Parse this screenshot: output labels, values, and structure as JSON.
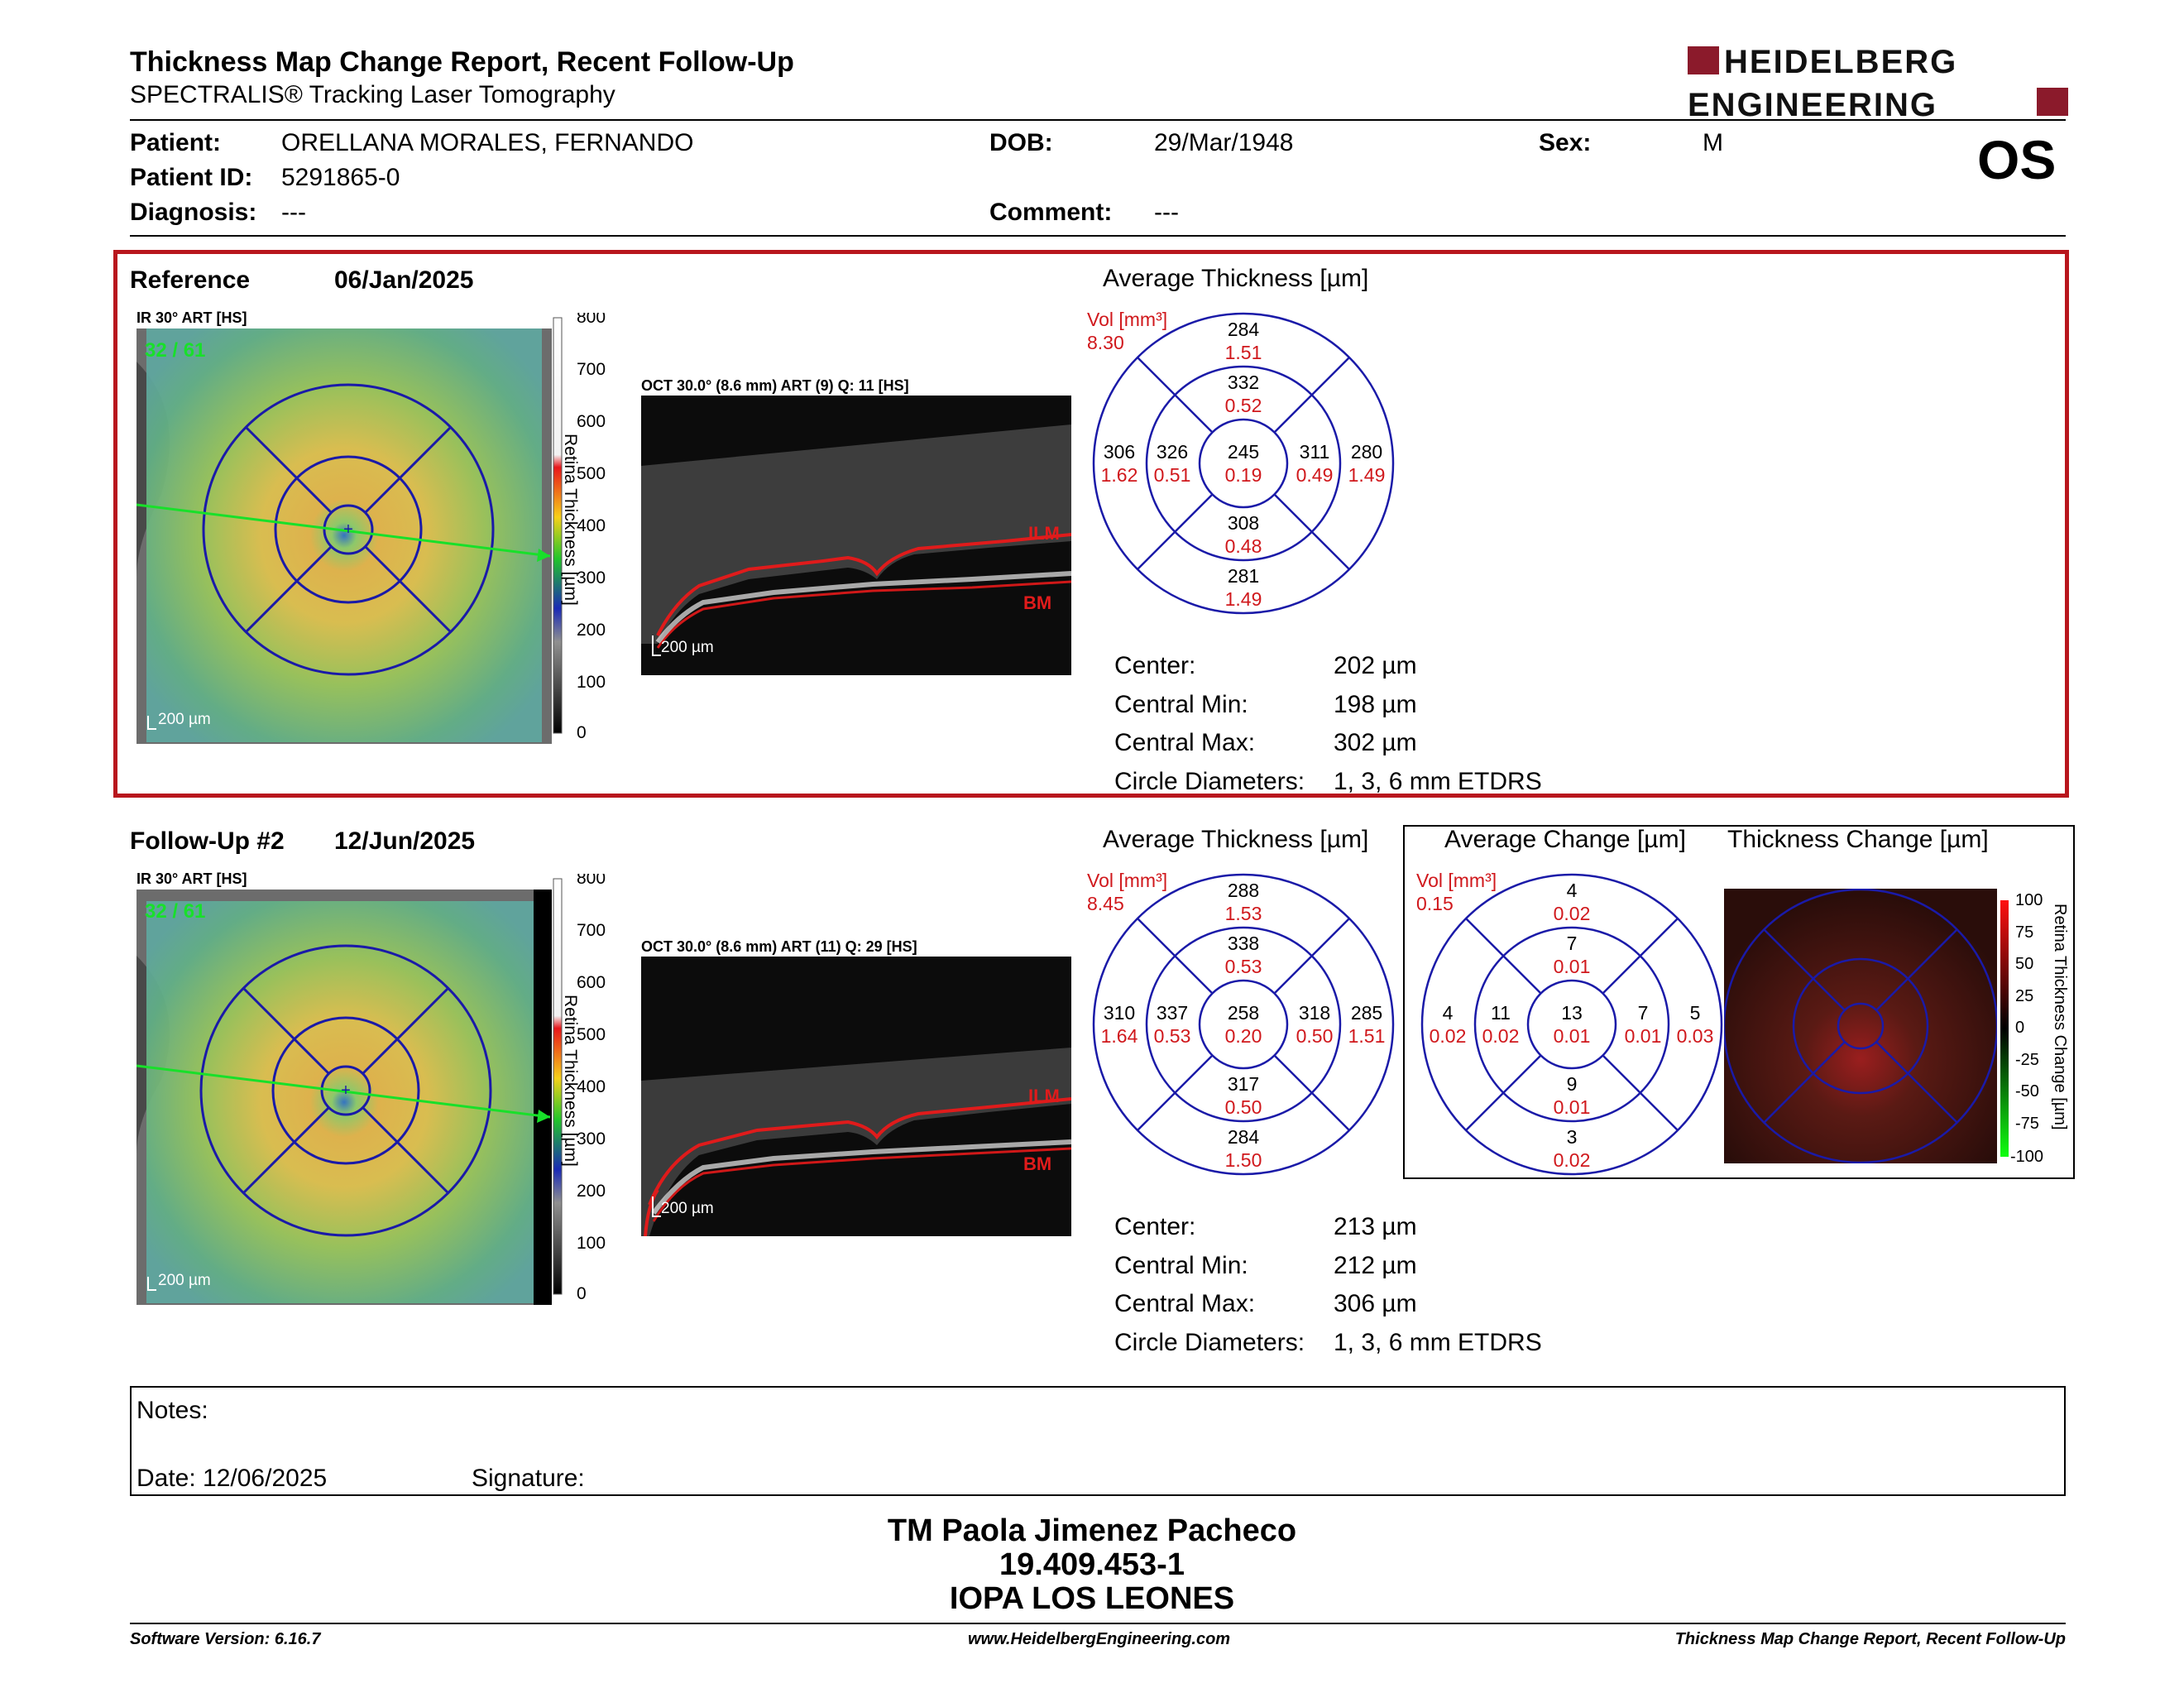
{
  "header": {
    "title": "Thickness Map Change Report, Recent Follow-Up",
    "subtitle": "SPECTRALIS® Tracking Laser Tomography",
    "logo_top": "HEIDELBERG",
    "logo_bottom": "ENGINEERING",
    "brand_color": "#8b1a2b"
  },
  "patient": {
    "patient_label": "Patient:",
    "patient_name": "ORELLANA MORALES, FERNANDO",
    "id_label": "Patient ID:",
    "id_value": "5291865-0",
    "diagnosis_label": "Diagnosis:",
    "diagnosis_value": "---",
    "dob_label": "DOB:",
    "dob_value": "29/Mar/1948",
    "comment_label": "Comment:",
    "comment_value": "---",
    "sex_label": "Sex:",
    "sex_value": "M",
    "eye": "OS"
  },
  "reference": {
    "label": "Reference",
    "date": "06/Jan/2025",
    "ir_label": "IR 30° ART [HS]",
    "ir_frames": "32 / 61",
    "scale_bar": "200 µm",
    "oct_label": "OCT 30.0° (8.6 mm) ART (9) Q: 11 [HS]",
    "oct_scale": "200 µm",
    "ilm": "ILM",
    "bm": "BM",
    "colorbar_ticks": [
      "800",
      "700",
      "600",
      "500",
      "400",
      "300",
      "200",
      "100",
      "0"
    ],
    "colorbar_title": "Retina Thickness [µm]",
    "avg_title": "Average Thickness [µm]",
    "vol_label": "Vol [mm³]",
    "vol_total": "8.30",
    "grid": {
      "outer_sup": [
        "284",
        "1.51"
      ],
      "inner_sup": [
        "332",
        "0.52"
      ],
      "outer_temp": [
        "306",
        "1.62"
      ],
      "inner_temp": [
        "326",
        "0.51"
      ],
      "center": [
        "245",
        "0.19"
      ],
      "inner_nas": [
        "311",
        "0.49"
      ],
      "outer_nas": [
        "280",
        "1.49"
      ],
      "inner_inf": [
        "308",
        "0.48"
      ],
      "outer_inf": [
        "281",
        "1.49"
      ]
    },
    "stats": [
      {
        "label": "Center:",
        "value": "202 µm"
      },
      {
        "label": "Central Min:",
        "value": "198 µm"
      },
      {
        "label": "Central Max:",
        "value": "302 µm"
      },
      {
        "label": "Circle Diameters:",
        "value": "1, 3, 6 mm ETDRS"
      }
    ]
  },
  "followup": {
    "label": "Follow-Up #2",
    "date": "12/Jun/2025",
    "ir_label": "IR 30° ART [HS]",
    "ir_frames": "32 / 61",
    "scale_bar": "200 µm",
    "oct_label": "OCT 30.0° (8.6 mm) ART (11) Q: 29 [HS]",
    "oct_scale": "200 µm",
    "ilm": "ILM",
    "bm": "BM",
    "colorbar_ticks": [
      "800",
      "700",
      "600",
      "500",
      "400",
      "300",
      "200",
      "100",
      "0"
    ],
    "colorbar_title": "Retina Thickness [µm]",
    "avg_title": "Average Thickness [µm]",
    "vol_label": "Vol [mm³]",
    "vol_total": "8.45",
    "grid": {
      "outer_sup": [
        "288",
        "1.53"
      ],
      "inner_sup": [
        "338",
        "0.53"
      ],
      "outer_temp": [
        "310",
        "1.64"
      ],
      "inner_temp": [
        "337",
        "0.53"
      ],
      "center": [
        "258",
        "0.20"
      ],
      "inner_nas": [
        "318",
        "0.50"
      ],
      "outer_nas": [
        "285",
        "1.51"
      ],
      "inner_inf": [
        "317",
        "0.50"
      ],
      "outer_inf": [
        "284",
        "1.50"
      ]
    },
    "stats": [
      {
        "label": "Center:",
        "value": "213 µm"
      },
      {
        "label": "Central Min:",
        "value": "212 µm"
      },
      {
        "label": "Central Max:",
        "value": "306 µm"
      },
      {
        "label": "Circle Diameters:",
        "value": "1, 3, 6 mm ETDRS"
      }
    ]
  },
  "change": {
    "avg_title": "Average Change [µm]",
    "map_title": "Thickness Change [µm]",
    "vol_label": "Vol [mm³]",
    "vol_total": "0.15",
    "grid": {
      "outer_sup": [
        "4",
        "0.02"
      ],
      "inner_sup": [
        "7",
        "0.01"
      ],
      "outer_temp": [
        "4",
        "0.02"
      ],
      "inner_temp": [
        "11",
        "0.02"
      ],
      "center": [
        "13",
        "0.01"
      ],
      "inner_nas": [
        "7",
        "0.01"
      ],
      "outer_nas": [
        "5",
        "0.03"
      ],
      "inner_inf": [
        "9",
        "0.01"
      ],
      "outer_inf": [
        "3",
        "0.02"
      ]
    },
    "colorbar_ticks": [
      "100",
      "75",
      "50",
      "25",
      "0",
      "-25",
      "-50",
      "-75",
      "-100"
    ],
    "colorbar_title": "Retina Thickness Change [µm]"
  },
  "notes": {
    "notes_label": "Notes:",
    "date_label": "Date: 12/06/2025",
    "signature_label": "Signature:"
  },
  "signer": {
    "name": "TM Paola Jimenez Pacheco",
    "rut": "19.409.453-1",
    "institution": "IOPA LOS LEONES"
  },
  "footer": {
    "software": "Software Version: 6.16.7",
    "website": "www.HeidelbergEngineering.com",
    "report": "Thickness Map Change Report, Recent Follow-Up"
  }
}
